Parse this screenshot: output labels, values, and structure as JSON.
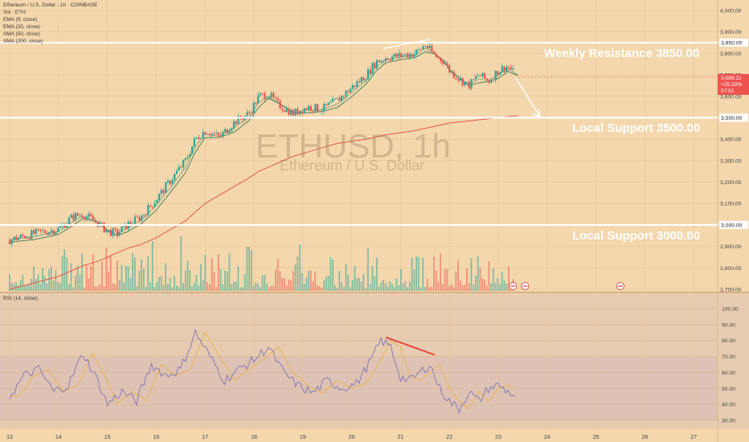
{
  "header": {
    "symbol_line": "Ethereum / U.S. Dollar · 1h · COINBASE",
    "indicators": [
      "Vol · ETH",
      "EMA (9, close)",
      "EMA (20, close)",
      "SMA (50, close)",
      "SMA (200, close)"
    ]
  },
  "watermark": {
    "ticker": "ETHUSD, 1h",
    "name": "Ethereum / U.S. Dollar"
  },
  "annotations": {
    "weekly_resistance": "Weekly Resistance 3850.00",
    "local_support_1": "Local Support 3500.00",
    "local_support_2": "Local Support 3000.00"
  },
  "price_tag": {
    "value": "3,689.12",
    "change": "+25.33%",
    "timer": "57:51"
  },
  "rsi": {
    "title": "RSI (14, close)"
  },
  "colors": {
    "background": "#f4d7ad",
    "up": "#26a69a",
    "down": "#ef5350",
    "level_line": "#ffffff",
    "ema9": "#5d8a64",
    "ema20": "#3e7a55",
    "sma200": "#e25a4b",
    "rsi_line": "#8a7bb8",
    "rsi_ma": "#e9b14c",
    "divergence": "#e83b3b",
    "price_tag": "#ef5350"
  },
  "chart_data": [
    {
      "type": "line",
      "title": "Ethereum / U.S. Dollar · 1h · COINBASE",
      "ylim": [
        2700,
        4000
      ],
      "y_ticks": [
        "4,000.00",
        "3,900.00",
        "3,800.00",
        "3,700.00",
        "3,600.00",
        "3,500.00",
        "3,400.00",
        "3,300.00",
        "3,200.00",
        "3,100.00",
        "3,000.00",
        "2,900.00",
        "2,800.00",
        "2,700.00"
      ],
      "x_ticks": [
        "13",
        "14",
        "15",
        "16",
        "17",
        "18",
        "19",
        "20",
        "21",
        "22",
        "23",
        "24",
        "25",
        "26",
        "27"
      ],
      "x": [
        13.0,
        13.5,
        14.0,
        14.3,
        14.5,
        14.8,
        15.0,
        15.2,
        15.4,
        15.7,
        16.0,
        16.3,
        16.6,
        16.8,
        17.0,
        17.3,
        17.6,
        17.9,
        18.1,
        18.3,
        18.5,
        18.8,
        19.1,
        19.4,
        19.7,
        20.0,
        20.3,
        20.5,
        20.7,
        21.0,
        21.3,
        21.5,
        21.7,
        21.9,
        22.0,
        22.2,
        22.4,
        22.6,
        22.8,
        23.0,
        23.2,
        23.4
      ],
      "series": [
        {
          "name": "ETHUSD",
          "values": [
            2930,
            2960,
            2980,
            3040,
            3050,
            3010,
            2970,
            2960,
            3000,
            3040,
            3120,
            3210,
            3300,
            3400,
            3440,
            3410,
            3480,
            3520,
            3600,
            3610,
            3560,
            3520,
            3550,
            3540,
            3580,
            3640,
            3700,
            3760,
            3780,
            3790,
            3800,
            3840,
            3790,
            3760,
            3720,
            3680,
            3650,
            3700,
            3670,
            3720,
            3740,
            3689
          ]
        },
        {
          "name": "SMA (200, close)",
          "values": [
            2700,
            2730,
            2760,
            2790,
            2810,
            2830,
            2850,
            2870,
            2890,
            2910,
            2940,
            2980,
            3020,
            3060,
            3100,
            3140,
            3180,
            3220,
            3250,
            3270,
            3290,
            3320,
            3340,
            3360,
            3380,
            3390,
            3400,
            3410,
            3420,
            3430,
            3440,
            3450,
            3460,
            3470,
            3475,
            3480,
            3485,
            3490,
            3495,
            3500,
            3505,
            3510
          ]
        }
      ],
      "levels": [
        3850,
        3500,
        3000
      ],
      "projection": {
        "from": 3689,
        "to": 3505
      }
    },
    {
      "type": "line",
      "title": "RSI (14, close)",
      "ylim": [
        30,
        100
      ],
      "y_ticks": [
        "100.00",
        "90.00",
        "80.00",
        "70.00",
        "60.00",
        "50.00",
        "40.00",
        "30.00"
      ],
      "x": [
        13.0,
        13.3,
        13.6,
        13.9,
        14.2,
        14.5,
        14.8,
        15.0,
        15.3,
        15.6,
        15.9,
        16.2,
        16.5,
        16.8,
        17.1,
        17.4,
        17.7,
        18.0,
        18.3,
        18.6,
        18.9,
        19.2,
        19.5,
        19.8,
        20.1,
        20.4,
        20.6,
        20.8,
        21.0,
        21.2,
        21.4,
        21.6,
        21.8,
        22.0,
        22.2,
        22.4,
        22.6,
        22.8,
        23.0,
        23.2,
        23.4
      ],
      "series": [
        {
          "name": "RSI (14, close)",
          "values": [
            45,
            58,
            62,
            48,
            52,
            72,
            55,
            40,
            48,
            42,
            65,
            58,
            62,
            85,
            70,
            55,
            62,
            68,
            76,
            60,
            52,
            47,
            55,
            50,
            53,
            68,
            80,
            76,
            57,
            55,
            60,
            65,
            50,
            42,
            37,
            48,
            42,
            50,
            52,
            48,
            44
          ]
        }
      ],
      "levels": [
        70,
        30
      ],
      "divergence": {
        "from": 82,
        "to": 71
      }
    }
  ]
}
